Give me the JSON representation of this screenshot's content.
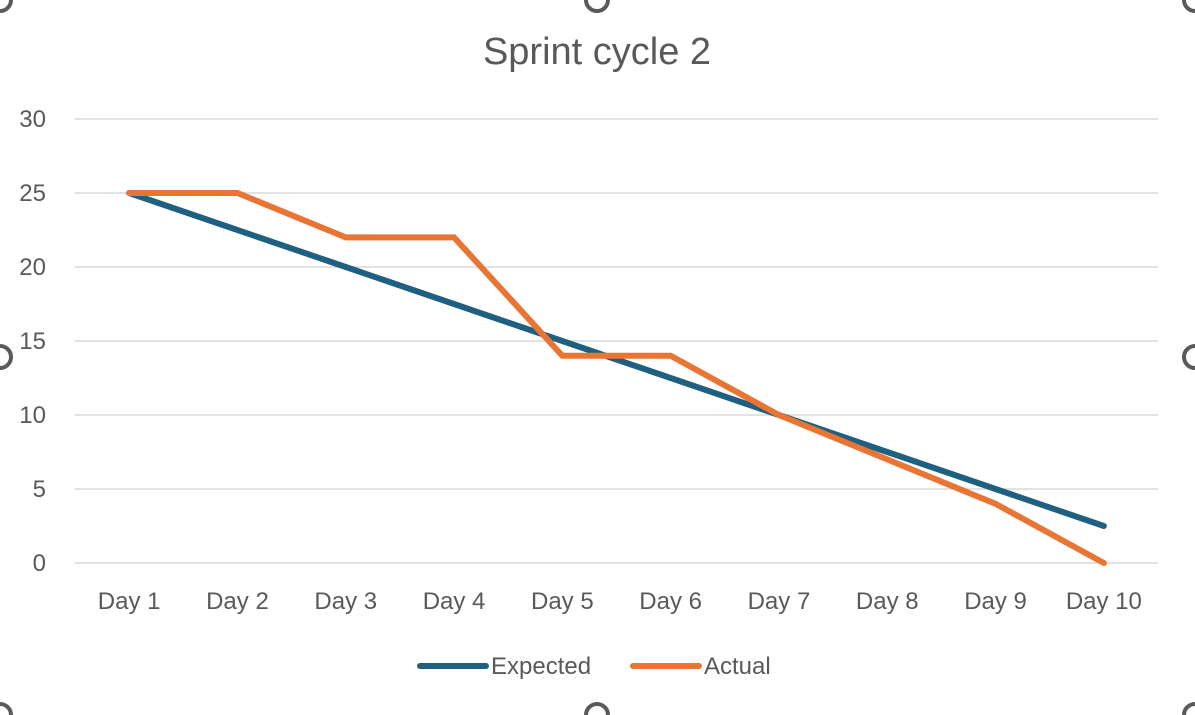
{
  "chart_data": {
    "type": "line",
    "title": "Sprint cycle 2",
    "xlabel": "",
    "ylabel": "",
    "categories": [
      "Day 1",
      "Day 2",
      "Day 3",
      "Day 4",
      "Day 5",
      "Day 6",
      "Day 7",
      "Day 8",
      "Day 9",
      "Day 10"
    ],
    "ylim": [
      0,
      30
    ],
    "yticks": [
      0,
      5,
      10,
      15,
      20,
      25,
      30
    ],
    "grid": true,
    "legend_position": "bottom",
    "series": [
      {
        "name": "Expected",
        "color": "#1f5f7f",
        "values": [
          25,
          22.5,
          20,
          17.5,
          15,
          12.5,
          10,
          7.5,
          5,
          2.5
        ]
      },
      {
        "name": "Actual",
        "color": "#e87533",
        "values": [
          25,
          25,
          22,
          22,
          14,
          14,
          10,
          7,
          4,
          0
        ]
      }
    ]
  }
}
